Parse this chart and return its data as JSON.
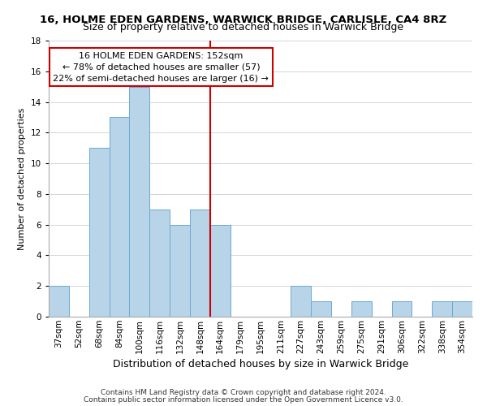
{
  "title": "16, HOLME EDEN GARDENS, WARWICK BRIDGE, CARLISLE, CA4 8RZ",
  "subtitle": "Size of property relative to detached houses in Warwick Bridge",
  "xlabel": "Distribution of detached houses by size in Warwick Bridge",
  "ylabel": "Number of detached properties",
  "bar_labels": [
    "37sqm",
    "52sqm",
    "68sqm",
    "84sqm",
    "100sqm",
    "116sqm",
    "132sqm",
    "148sqm",
    "164sqm",
    "179sqm",
    "195sqm",
    "211sqm",
    "227sqm",
    "243sqm",
    "259sqm",
    "275sqm",
    "291sqm",
    "306sqm",
    "322sqm",
    "338sqm",
    "354sqm"
  ],
  "bar_values": [
    2,
    0,
    11,
    13,
    15,
    7,
    6,
    7,
    6,
    0,
    0,
    0,
    2,
    1,
    0,
    1,
    0,
    1,
    0,
    1,
    1
  ],
  "bar_color": "#b8d4e8",
  "bar_edge_color": "#6aaad4",
  "reference_line_color": "#cc0000",
  "ylim": [
    0,
    18
  ],
  "yticks": [
    0,
    2,
    4,
    6,
    8,
    10,
    12,
    14,
    16,
    18
  ],
  "annotation_title": "16 HOLME EDEN GARDENS: 152sqm",
  "annotation_line1": "← 78% of detached houses are smaller (57)",
  "annotation_line2": "22% of semi-detached houses are larger (16) →",
  "annotation_box_color": "#ffffff",
  "annotation_box_edge": "#cc0000",
  "footer1": "Contains HM Land Registry data © Crown copyright and database right 2024.",
  "footer2": "Contains public sector information licensed under the Open Government Licence v3.0.",
  "title_fontsize": 9.5,
  "subtitle_fontsize": 9,
  "xlabel_fontsize": 9,
  "ylabel_fontsize": 8,
  "tick_fontsize": 7.5,
  "footer_fontsize": 6.5,
  "annotation_fontsize": 8
}
